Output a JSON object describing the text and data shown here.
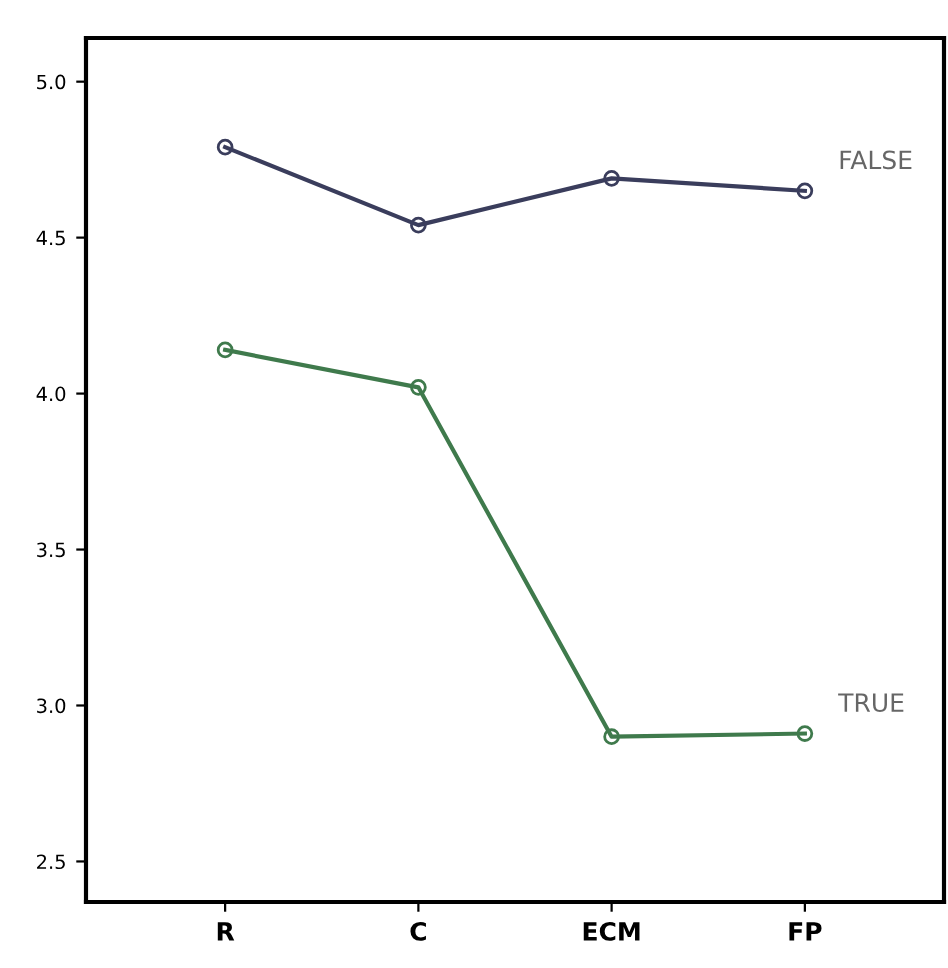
{
  "chart_data": {
    "type": "line",
    "categories": [
      "R",
      "C",
      "ECM",
      "FP"
    ],
    "series": [
      {
        "name": "FALSE",
        "color": "#3a3d5c",
        "values": [
          4.79,
          4.54,
          4.69,
          4.65
        ]
      },
      {
        "name": "TRUE",
        "color": "#3f7a4c",
        "values": [
          4.14,
          4.02,
          2.9,
          2.91
        ]
      }
    ],
    "ylim": [
      2.37,
      5.14
    ],
    "yticks": [
      2.5,
      {
        "value": 3,
        "label": "3.0"
      },
      3.5,
      {
        "value": 4,
        "label": "4.0"
      },
      4.5,
      {
        "value": 5,
        "label": "5.0"
      }
    ],
    "grid": false,
    "legend": false,
    "marker": "circle",
    "line_style": "solid"
  }
}
